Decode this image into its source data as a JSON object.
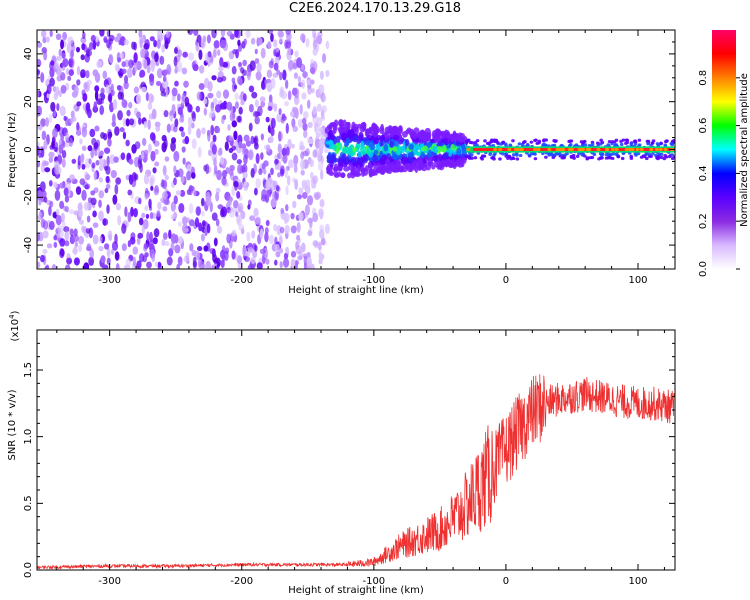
{
  "title": "C2E6.2024.170.13.29.G18",
  "chart_data": [
    {
      "type": "heatmap",
      "xlabel": "Height of straight line (km)",
      "ylabel": "Frequency (Hz)",
      "xlim": [
        -355,
        128
      ],
      "ylim": [
        -50,
        50
      ],
      "xticks": [
        -300,
        -200,
        -100,
        0,
        100
      ],
      "xtick_labels": [
        "-300",
        "-200",
        "-100",
        "0",
        "100"
      ],
      "yticks": [
        -40,
        -20,
        0,
        20,
        40
      ],
      "ytick_labels": [
        "-40",
        "-20",
        "0",
        "20",
        "40"
      ],
      "colorbar": {
        "label": "Normalized spectral amplitude",
        "range": [
          0.0,
          1.0
        ],
        "ticks": [
          0.0,
          0.2,
          0.4,
          0.6,
          0.8
        ],
        "tick_labels": [
          "0.0",
          "0.2",
          "0.4",
          "0.6",
          "0.8"
        ],
        "colors": [
          "#ffffff",
          "#d8b8ff",
          "#8a2be2",
          "#5a00ff",
          "#0000ff",
          "#00ffff",
          "#00ff00",
          "#ffff00",
          "#ff8000",
          "#ff0000",
          "#ff0066"
        ]
      },
      "regions": [
        {
          "x_range": [
            -355,
            -135
          ],
          "freq_range": [
            -50,
            50
          ],
          "amplitude": 0.1,
          "description_level": "diffuse purple noise"
        },
        {
          "x_range": [
            -135,
            -30
          ],
          "freq_range": [
            -12,
            12
          ],
          "amplitude": 0.3,
          "description_level": "blue-cyan-green band"
        },
        {
          "x_range": [
            -30,
            128
          ],
          "freq_range": [
            -3,
            3
          ],
          "amplitude": 0.9,
          "description_level": "narrow red line at 0 Hz"
        }
      ],
      "grid": false
    },
    {
      "type": "line",
      "xlabel": "Height of straight line (km)",
      "ylabel": "SNR (10 * v/v)",
      "y_multiplier_label": "(x10",
      "y_multiplier_exp": "4",
      "y_multiplier_close": ")",
      "xlim": [
        -355,
        128
      ],
      "ylim": [
        0,
        1.8
      ],
      "xticks": [
        -300,
        -200,
        -100,
        0,
        100
      ],
      "xtick_labels": [
        "-300",
        "-200",
        "-100",
        "0",
        "100"
      ],
      "yticks": [
        0.0,
        0.5,
        1.0,
        1.5
      ],
      "ytick_labels": [
        "0.0",
        "0.5",
        "1.0",
        "1.5"
      ],
      "series": [
        {
          "color": "#ee3030",
          "x": [
            -355,
            -300,
            -250,
            -200,
            -150,
            -120,
            -100,
            -90,
            -80,
            -70,
            -60,
            -50,
            -40,
            -30,
            -20,
            -10,
            0,
            10,
            20,
            30,
            40,
            50,
            60,
            70,
            80,
            90,
            100,
            110,
            128
          ],
          "y": [
            0.02,
            0.03,
            0.03,
            0.04,
            0.04,
            0.04,
            0.06,
            0.12,
            0.18,
            0.22,
            0.26,
            0.3,
            0.38,
            0.48,
            0.62,
            0.75,
            0.9,
            1.05,
            1.18,
            1.25,
            1.28,
            1.3,
            1.32,
            1.3,
            1.28,
            1.26,
            1.25,
            1.25,
            1.22
          ]
        }
      ],
      "grid": false
    }
  ]
}
